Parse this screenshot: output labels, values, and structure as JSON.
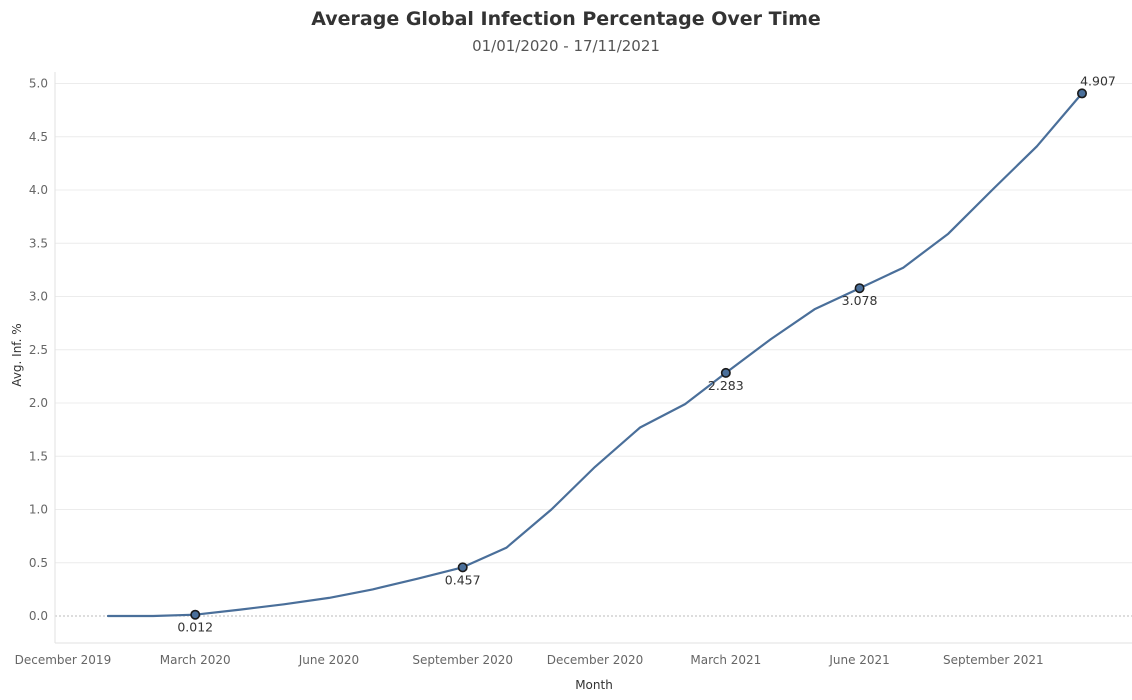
{
  "chart_data": {
    "type": "line",
    "title": "Average Global Infection Percentage Over Time",
    "subtitle": "01/01/2020 - 17/11/2021",
    "xlabel": "Month",
    "ylabel": "Avg. Inf. %",
    "ylim": [
      0,
      5.2
    ],
    "yticks": [
      "0.0",
      "0.5",
      "1.0",
      "1.5",
      "2.0",
      "2.5",
      "3.0",
      "3.5",
      "4.0",
      "4.5",
      "5.0"
    ],
    "xticks": [
      {
        "label": "December 2019",
        "date": "2019-12-01"
      },
      {
        "label": "March 2020",
        "date": "2020-03-01"
      },
      {
        "label": "June 2020",
        "date": "2020-06-01"
      },
      {
        "label": "September 2020",
        "date": "2020-09-01"
      },
      {
        "label": "December 2020",
        "date": "2020-12-01"
      },
      {
        "label": "March 2021",
        "date": "2021-03-01"
      },
      {
        "label": "June 2021",
        "date": "2021-06-01"
      },
      {
        "label": "September 2021",
        "date": "2021-09-01"
      }
    ],
    "grid": true,
    "series": [
      {
        "color": "#4a6f9a",
        "points": [
          {
            "date": "2020-01-01",
            "value": 0.0
          },
          {
            "date": "2020-02-01",
            "value": 0.0
          },
          {
            "date": "2020-03-01",
            "value": 0.012
          },
          {
            "date": "2020-04-01",
            "value": 0.06
          },
          {
            "date": "2020-05-01",
            "value": 0.11
          },
          {
            "date": "2020-06-01",
            "value": 0.17
          },
          {
            "date": "2020-07-01",
            "value": 0.25
          },
          {
            "date": "2020-08-01",
            "value": 0.35
          },
          {
            "date": "2020-09-01",
            "value": 0.457
          },
          {
            "date": "2020-10-01",
            "value": 0.64
          },
          {
            "date": "2020-11-01",
            "value": 1.0
          },
          {
            "date": "2020-12-01",
            "value": 1.4
          },
          {
            "date": "2021-01-01",
            "value": 1.77
          },
          {
            "date": "2021-02-01",
            "value": 1.99
          },
          {
            "date": "2021-03-01",
            "value": 2.283
          },
          {
            "date": "2021-04-01",
            "value": 2.6
          },
          {
            "date": "2021-05-01",
            "value": 2.88
          },
          {
            "date": "2021-06-01",
            "value": 3.078
          },
          {
            "date": "2021-07-01",
            "value": 3.27
          },
          {
            "date": "2021-08-01",
            "value": 3.59
          },
          {
            "date": "2021-09-01",
            "value": 4.01
          },
          {
            "date": "2021-10-01",
            "value": 4.41
          },
          {
            "date": "2021-11-01",
            "value": 4.907
          }
        ]
      }
    ],
    "annotations": [
      {
        "date": "2020-03-01",
        "value": 0.012,
        "label": "0.012",
        "position": "below"
      },
      {
        "date": "2020-09-01",
        "value": 0.457,
        "label": "0.457",
        "position": "below"
      },
      {
        "date": "2021-03-01",
        "value": 2.283,
        "label": "2.283",
        "position": "below"
      },
      {
        "date": "2021-06-01",
        "value": 3.078,
        "label": "3.078",
        "position": "below"
      },
      {
        "date": "2021-11-01",
        "value": 4.907,
        "label": "4.907",
        "position": "above"
      }
    ],
    "colors": {
      "line": "#4a6f9a",
      "marker_fill": "#4a6f9a",
      "marker_stroke": "#1a1a1a",
      "grid": "#ececec",
      "zero_line": "#bbbbbb"
    }
  }
}
